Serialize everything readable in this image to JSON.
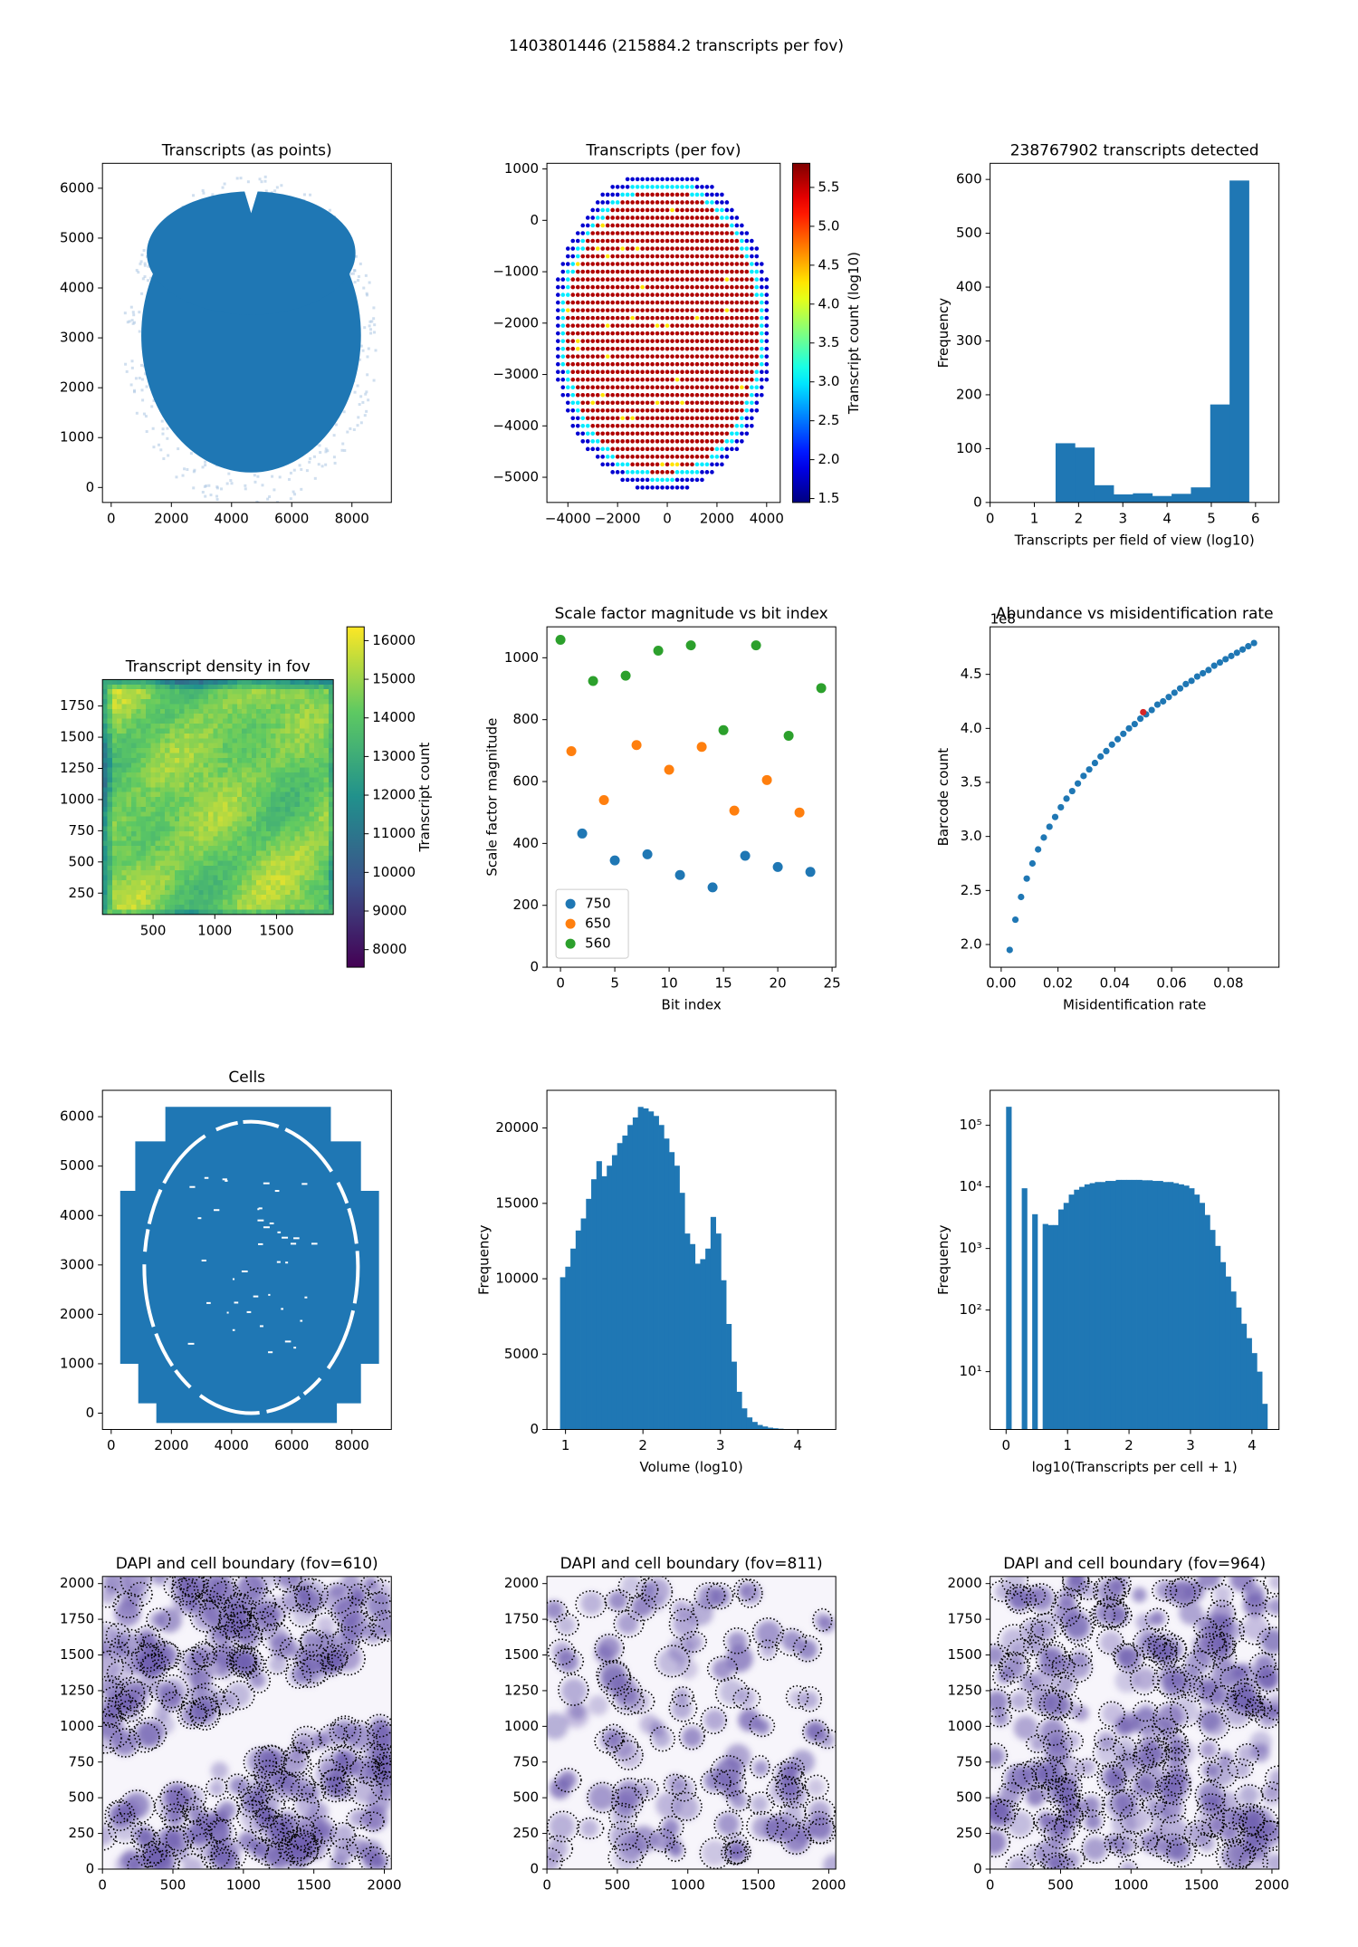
{
  "title": "1403801446 (215884.2 transcripts per fov)",
  "chart_data": [
    {
      "type": "points",
      "title": "Transcripts (as points)",
      "color": "#1f77b4",
      "xlim": [
        -290,
        9310
      ],
      "ylim": [
        -300,
        6500
      ],
      "xticks": [
        0,
        2000,
        4000,
        6000,
        8000
      ],
      "yticks": [
        0,
        1000,
        2000,
        3000,
        4000,
        5000,
        6000
      ]
    },
    {
      "type": "fovmap",
      "title": "Transcripts (per fov)",
      "xlim": [
        -4845,
        4547
      ],
      "ylim": [
        -5490,
        1110
      ],
      "xticks": [
        {
          "value": -4000,
          "label": "−4000"
        },
        {
          "value": -2000,
          "label": "−2000"
        },
        0,
        2000,
        4000
      ],
      "yticks": [
        1000,
        0,
        {
          "value": -1000,
          "label": "−1000"
        },
        {
          "value": -2000,
          "label": "−2000"
        },
        {
          "value": -3000,
          "label": "−3000"
        },
        {
          "value": -4000,
          "label": "−4000"
        },
        {
          "value": -5000,
          "label": "−5000"
        }
      ],
      "colorbar": {
        "label": "Transcript count (log10)",
        "colormap": "jet",
        "lim": [
          1.45,
          5.81
        ],
        "ticks": [
          1.5,
          {
            "value": 2,
            "label": "2.0"
          },
          2.5,
          {
            "value": 3,
            "label": "3.0"
          },
          3.5,
          {
            "value": 4,
            "label": "4.0"
          },
          4.5,
          {
            "value": 5,
            "label": "5.0"
          },
          5.5
        ]
      }
    },
    {
      "type": "histogram",
      "title": "238767902 transcripts detected",
      "xlabel": "Transcripts per field of view (log10)",
      "ylabel": "Frequency",
      "color": "#1f77b4",
      "bins": [
        1.48,
        1.917,
        2.354,
        2.791,
        3.228,
        3.665,
        4.102,
        4.539,
        4.976,
        5.413,
        5.85
      ],
      "values": [
        110,
        102,
        32,
        15,
        17,
        12,
        16,
        28,
        182,
        598
      ],
      "xlim": [
        0,
        6.53
      ],
      "ylim": [
        0,
        630
      ],
      "xticks": [
        0,
        1,
        2,
        3,
        4,
        5,
        6
      ],
      "yticks": [
        0,
        100,
        200,
        300,
        400,
        500,
        600
      ]
    },
    {
      "type": "heatmap",
      "title": "Transcript density in fov",
      "xlim": [
        90,
        1960
      ],
      "ylim": [
        79,
        1962
      ],
      "xticks": [
        500,
        1000,
        1500
      ],
      "yticks": [
        250,
        500,
        750,
        1000,
        1250,
        1500,
        1750
      ],
      "colorbar": {
        "label": "Transcript count",
        "colormap": "viridis",
        "lim": [
          7545,
          16358
        ],
        "ticks": [
          8000,
          9000,
          10000,
          11000,
          12000,
          13000,
          14000,
          15000,
          16000
        ]
      }
    },
    {
      "type": "scatter",
      "title": "Scale factor magnitude vs bit index",
      "xlabel": "Bit index",
      "ylabel": "Scale factor magnitude",
      "legend": "lower left",
      "xlim": [
        -1.25,
        25.34
      ],
      "ylim": [
        0,
        1100
      ],
      "xticks": [
        0,
        5,
        10,
        15,
        20,
        25
      ],
      "yticks": [
        0,
        200,
        400,
        600,
        800,
        1000
      ],
      "series": [
        {
          "name": "750",
          "color": "#1f77b4",
          "x": [
            2,
            5,
            8,
            11,
            14,
            17,
            20,
            23
          ],
          "values": [
            432,
            345,
            365,
            298,
            258,
            360,
            324,
            308
          ]
        },
        {
          "name": "650",
          "color": "#ff7f0e",
          "x": [
            1,
            4,
            7,
            10,
            13,
            16,
            19,
            22
          ],
          "values": [
            698,
            540,
            718,
            638,
            712,
            506,
            605,
            500
          ]
        },
        {
          "name": "560",
          "color": "#2ca02c",
          "x": [
            0,
            3,
            6,
            9,
            12,
            15,
            18,
            21,
            24
          ],
          "values": [
            1058,
            925,
            942,
            1023,
            1040,
            766,
            1040,
            748,
            902
          ]
        }
      ]
    },
    {
      "type": "scatter",
      "title": "Abundance vs misidentification rate",
      "xlabel": "Misidentification rate",
      "ylabel": "Barcode count",
      "y_offset_label": "1e8",
      "xlim": [
        -0.0039,
        0.0978
      ],
      "ylim": [
        1.79,
        4.94
      ],
      "xticks": [
        {
          "value": 0,
          "label": "0.00"
        },
        0.02,
        0.04,
        0.06,
        0.08
      ],
      "yticks": [
        {
          "value": 2,
          "label": "2.0"
        },
        2.5,
        {
          "value": 3,
          "label": "3.0"
        },
        3.5,
        {
          "value": 4,
          "label": "4.0"
        },
        4.5
      ],
      "series": [
        {
          "color": "#1f77b4",
          "x": [
            0.003,
            0.005,
            0.007,
            0.009,
            0.011,
            0.013,
            0.015,
            0.017,
            0.019,
            0.021,
            0.023,
            0.025,
            0.027,
            0.029,
            0.031,
            0.033,
            0.035,
            0.037,
            0.039,
            0.041,
            0.043,
            0.045,
            0.047,
            0.049,
            0.051,
            0.053,
            0.055,
            0.057,
            0.059,
            0.061,
            0.063,
            0.065,
            0.067,
            0.069,
            0.071,
            0.073,
            0.075,
            0.077,
            0.079,
            0.081,
            0.083,
            0.085,
            0.087,
            0.089
          ],
          "values": [
            1.95,
            2.23,
            2.44,
            2.61,
            2.75,
            2.88,
            2.99,
            3.09,
            3.18,
            3.27,
            3.35,
            3.42,
            3.49,
            3.56,
            3.62,
            3.68,
            3.74,
            3.79,
            3.85,
            3.9,
            3.95,
            4.0,
            4.04,
            4.09,
            4.13,
            4.17,
            4.22,
            4.25,
            4.29,
            4.33,
            4.37,
            4.41,
            4.44,
            4.48,
            4.51,
            4.54,
            4.58,
            4.61,
            4.64,
            4.67,
            4.7,
            4.73,
            4.76,
            4.79
          ]
        },
        {
          "color": "#d62728",
          "x": [
            0.05
          ],
          "values": [
            4.15
          ]
        }
      ]
    },
    {
      "type": "cells",
      "title": "Cells",
      "color": "#1f77b4",
      "xlim": [
        -290,
        9310
      ],
      "ylim": [
        -330,
        6534
      ],
      "xticks": [
        0,
        2000,
        4000,
        6000,
        8000
      ],
      "yticks": [
        0,
        1000,
        2000,
        3000,
        4000,
        5000,
        6000
      ]
    },
    {
      "type": "histogram",
      "xlabel": "Volume (log10)",
      "ylabel": "Frequency",
      "color": "#1f77b4",
      "bins": [
        0.93,
        0.997,
        1.064,
        1.131,
        1.198,
        1.265,
        1.332,
        1.399,
        1.466,
        1.533,
        1.6,
        1.667,
        1.734,
        1.801,
        1.868,
        1.935,
        2.002,
        2.069,
        2.136,
        2.203,
        2.27,
        2.337,
        2.404,
        2.471,
        2.538,
        2.605,
        2.672,
        2.739,
        2.806,
        2.873,
        2.94,
        3.007,
        3.074,
        3.141,
        3.208,
        3.275,
        3.342,
        3.409,
        3.476,
        3.543,
        3.61,
        3.677,
        3.744,
        3.811,
        3.878,
        3.945,
        4.012,
        4.079,
        4.146,
        4.213,
        4.28
      ],
      "values": [
        10100,
        10800,
        12000,
        13200,
        14000,
        15300,
        16600,
        17800,
        16800,
        17500,
        18200,
        19000,
        19500,
        20200,
        20700,
        21400,
        21300,
        21100,
        20800,
        20200,
        19300,
        18400,
        17500,
        15700,
        13000,
        12300,
        11000,
        11300,
        12000,
        14100,
        13000,
        9900,
        7000,
        4500,
        2500,
        1400,
        800,
        500,
        300,
        200,
        120,
        80,
        50,
        30,
        20,
        10,
        6,
        4,
        2,
        1
      ],
      "xlim": [
        0.76,
        4.49
      ],
      "ylim": [
        0,
        22500
      ],
      "xticks": [
        1,
        2,
        3,
        4
      ],
      "yticks": [
        0,
        5000,
        10000,
        15000,
        20000
      ]
    },
    {
      "type": "histogram",
      "xlabel": "log10(Transcripts per cell + 1)",
      "ylabel": "Frequency",
      "color": "#1f77b4",
      "yscale": "log",
      "bins": [
        0,
        0.085,
        0.17,
        0.255,
        0.34,
        0.425,
        0.51,
        0.595,
        0.68,
        0.765,
        0.85,
        0.935,
        1.02,
        1.105,
        1.19,
        1.275,
        1.36,
        1.445,
        1.53,
        1.615,
        1.7,
        1.785,
        1.87,
        1.955,
        2.04,
        2.125,
        2.21,
        2.295,
        2.38,
        2.465,
        2.55,
        2.635,
        2.72,
        2.805,
        2.89,
        2.975,
        3.06,
        3.145,
        3.23,
        3.315,
        3.4,
        3.485,
        3.57,
        3.655,
        3.74,
        3.825,
        3.91,
        3.995,
        4.08,
        4.165,
        4.25
      ],
      "values": [
        200000,
        0,
        0,
        9500,
        0,
        3600,
        0,
        2500,
        2400,
        2400,
        4300,
        5500,
        7500,
        9000,
        10000,
        11000,
        11500,
        12000,
        12000,
        12500,
        12500,
        13000,
        13000,
        13000,
        13000,
        13000,
        12800,
        12800,
        12500,
        12500,
        12000,
        12000,
        11500,
        11000,
        10500,
        9500,
        7500,
        5500,
        3500,
        2000,
        1100,
        600,
        350,
        200,
        110,
        60,
        35,
        20,
        10,
        3
      ],
      "xlim": [
        -0.26,
        4.44
      ],
      "ylim": [
        1.15,
        370000
      ],
      "xticks": [
        0,
        1,
        2,
        3,
        4
      ],
      "yticks": [
        {
          "value": 10,
          "label": "10¹"
        },
        {
          "value": 100,
          "label": "10²"
        },
        {
          "value": 1000,
          "label": "10³"
        },
        {
          "value": 10000,
          "label": "10⁴"
        },
        {
          "value": 100000,
          "label": "10⁵"
        }
      ]
    },
    {
      "type": "micrograph",
      "title": "DAPI and cell boundary (fov=610)",
      "color": "#6f5fb0",
      "xlim": [
        0,
        2050
      ],
      "ylim": [
        0,
        2050
      ],
      "xticks": [
        0,
        500,
        1000,
        1500,
        2000
      ],
      "yticks": [
        0,
        250,
        500,
        750,
        1000,
        1250,
        1500,
        1750,
        2000
      ]
    },
    {
      "type": "micrograph",
      "title": "DAPI and cell boundary (fov=811)",
      "color": "#6f5fb0",
      "xlim": [
        0,
        2050
      ],
      "ylim": [
        0,
        2050
      ],
      "xticks": [
        0,
        500,
        1000,
        1500,
        2000
      ],
      "yticks": [
        0,
        250,
        500,
        750,
        1000,
        1250,
        1500,
        1750,
        2000
      ]
    },
    {
      "type": "micrograph",
      "title": "DAPI and cell boundary (fov=964)",
      "color": "#6f5fb0",
      "xlim": [
        0,
        2050
      ],
      "ylim": [
        0,
        2050
      ],
      "xticks": [
        0,
        500,
        1000,
        1500,
        2000
      ],
      "yticks": [
        0,
        250,
        500,
        750,
        1000,
        1250,
        1500,
        1750,
        2000
      ]
    }
  ]
}
